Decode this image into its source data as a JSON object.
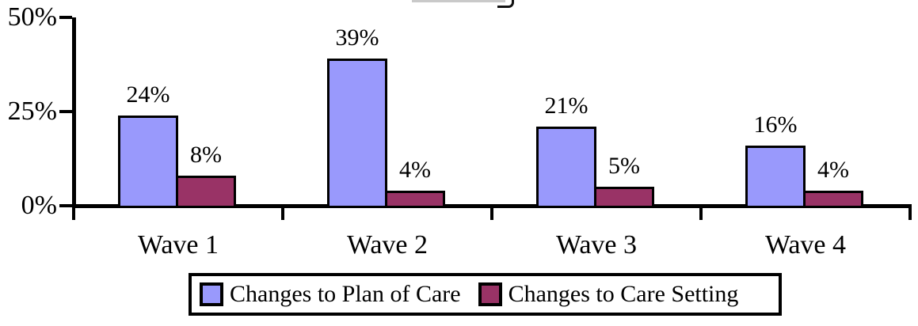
{
  "chart_data": {
    "type": "bar",
    "categories": [
      "Wave 1",
      "Wave 2",
      "Wave 3",
      "Wave 4"
    ],
    "series": [
      {
        "name": "Changes to Plan of Care",
        "color": "#9999FC",
        "values": [
          24,
          39,
          21,
          16
        ]
      },
      {
        "name": "Changes to Care Setting",
        "color": "#993366",
        "values": [
          8,
          4,
          5,
          4
        ]
      }
    ],
    "data_label_suffix": "%",
    "data_labels": {
      "series_0": [
        "24%",
        "39%",
        "21%",
        "16%"
      ],
      "series_1": [
        "8%",
        "4%",
        "5%",
        "4%"
      ]
    },
    "yticks": [
      0,
      25,
      50
    ],
    "ytick_labels": [
      "0%",
      "25%",
      "50%"
    ],
    "ylim": [
      0,
      50
    ],
    "xlabel": "",
    "ylabel": "",
    "title": "",
    "grid": false,
    "legend_position": "bottom",
    "bar_border_color": "#000000",
    "axis_color": "#000000",
    "background_color": "#FFFFFF",
    "text_color": "#000000"
  }
}
